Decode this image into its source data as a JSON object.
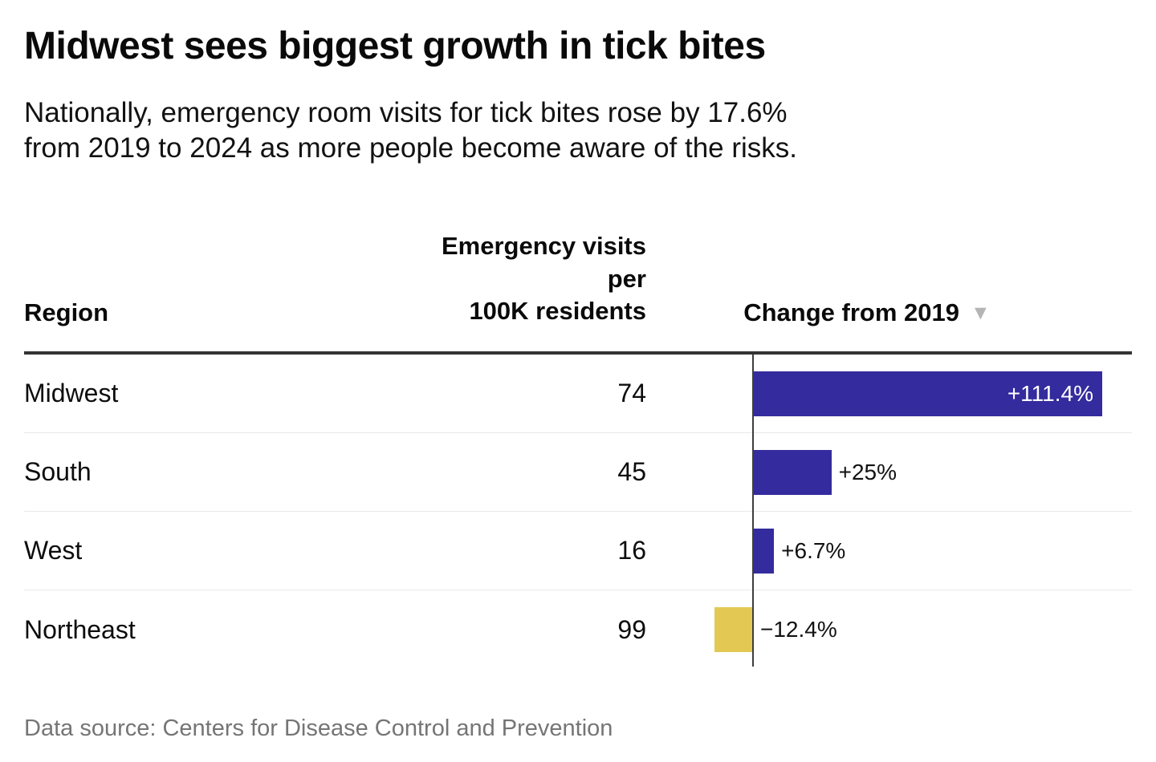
{
  "header": {
    "title": "Midwest sees biggest growth in tick bites",
    "subtitle_line1": "Nationally, emergency room visits for tick bites rose by 17.6%",
    "subtitle_line2": "from 2019 to 2024 as more people become aware of the risks."
  },
  "table_header": {
    "region": "Region",
    "visits_line1": "Emergency visits per",
    "visits_line2": "100K residents",
    "change": "Change from 2019",
    "sort_icon": "▼"
  },
  "chart_data": {
    "type": "bar",
    "orientation": "horizontal",
    "title": "Midwest sees biggest growth in tick bites",
    "subtitle": "Nationally, emergency room visits for tick bites rose by 17.6% from 2019 to 2024 as more people become aware of the risks.",
    "categories": [
      "Midwest",
      "South",
      "West",
      "Northeast"
    ],
    "series": [
      {
        "name": "Emergency visits per 100K residents",
        "values": [
          74,
          45,
          16,
          99
        ]
      },
      {
        "name": "Change from 2019 (%)",
        "values": [
          111.4,
          25,
          6.7,
          -12.4
        ]
      }
    ],
    "xlim": [
      -12.4,
      111.4
    ],
    "zero_baseline": true,
    "legend": "none",
    "sort": {
      "column": "Change from 2019",
      "direction": "descending"
    },
    "colors": {
      "positive_bar": "#342b9e",
      "negative_bar": "#e3c953"
    },
    "rows": [
      {
        "region": "Midwest",
        "visits": "74",
        "change_pct": 111.4,
        "change_label": "+111.4%",
        "label_inside": true
      },
      {
        "region": "South",
        "visits": "45",
        "change_pct": 25,
        "change_label": "+25%",
        "label_inside": false
      },
      {
        "region": "West",
        "visits": "16",
        "change_pct": 6.7,
        "change_label": "+6.7%",
        "label_inside": false
      },
      {
        "region": "Northeast",
        "visits": "99",
        "change_pct": -12.4,
        "change_label": "−12.4%",
        "label_inside": false
      }
    ]
  },
  "footer": {
    "source": "Data source: Centers for Disease Control and Prevention"
  }
}
